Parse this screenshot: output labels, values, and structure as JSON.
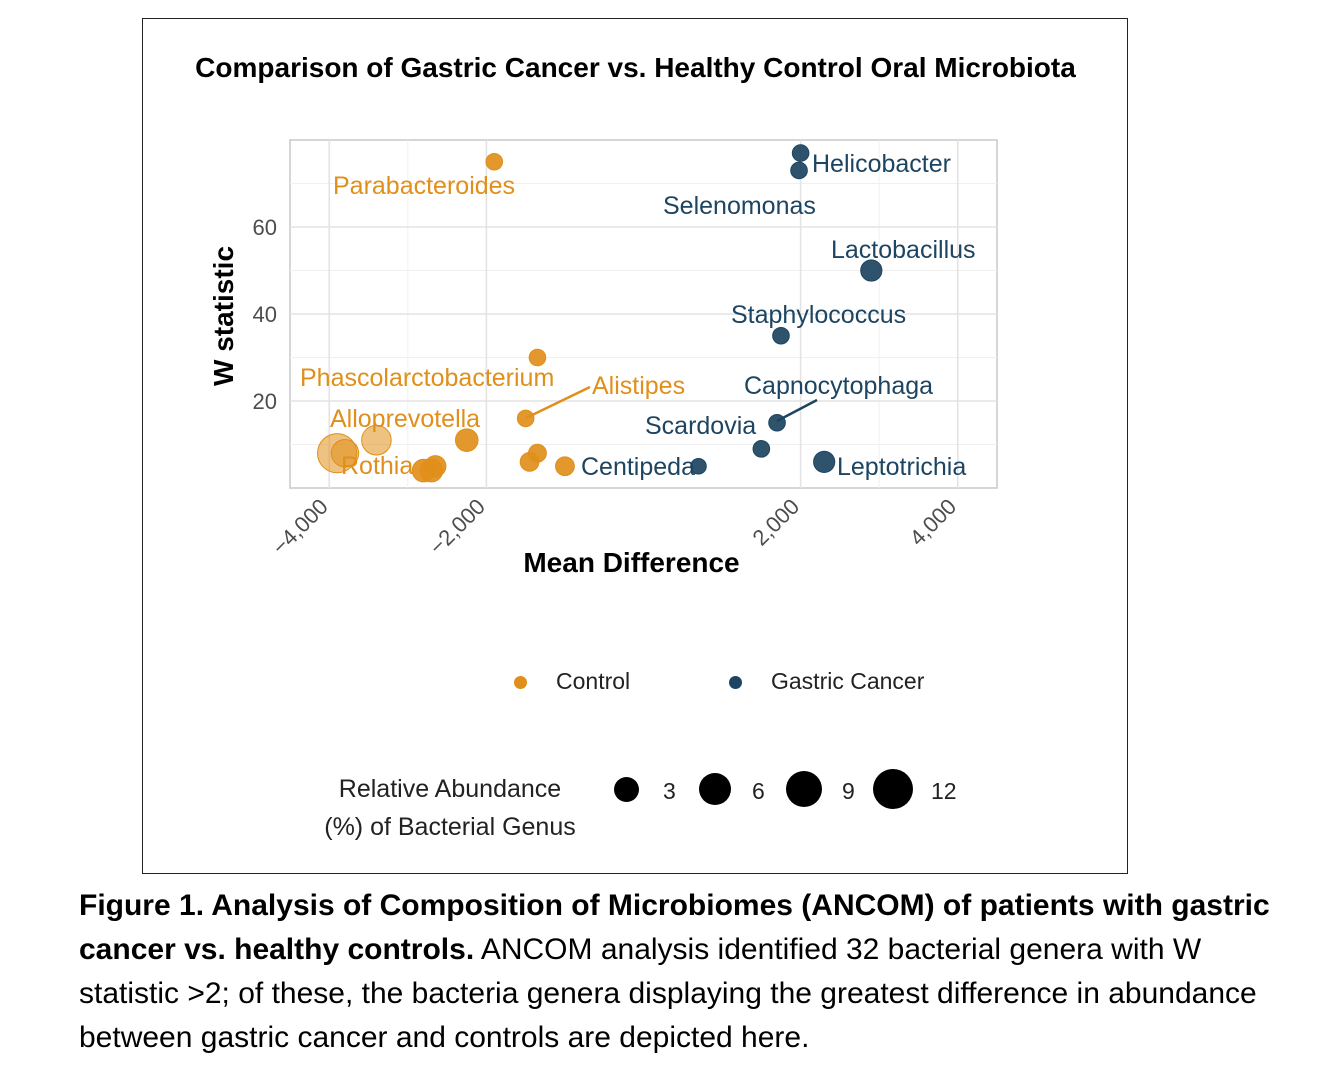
{
  "chart_data": {
    "type": "scatter",
    "title": "Comparison of Gastric Cancer vs. Healthy Control Oral Microbiota",
    "xlabel": "Mean Difference",
    "ylabel": "W statistic",
    "xlim": [
      -4500,
      4500
    ],
    "ylim": [
      0,
      80
    ],
    "x_ticks": [
      -4000,
      -2000,
      2000,
      4000
    ],
    "x_tick_labels": [
      "−4,000",
      "−2,000",
      "2,000",
      "4,000"
    ],
    "y_ticks": [
      20,
      40,
      60
    ],
    "y_tick_labels": [
      "20",
      "40",
      "60"
    ],
    "grid": true,
    "legend_position": "bottom",
    "series": [
      {
        "name": "Control",
        "color": "#e08f1a",
        "points": [
          {
            "x": -1900,
            "y": 75,
            "size": 1.2
          },
          {
            "x": -2250,
            "y": 11,
            "size": 3
          },
          {
            "x": -3900,
            "y": 8,
            "size": 12
          },
          {
            "x": -3800,
            "y": 8,
            "size": 5
          },
          {
            "x": -3400,
            "y": 11,
            "size": 6
          },
          {
            "x": -2800,
            "y": 4,
            "size": 3
          },
          {
            "x": -2650,
            "y": 5,
            "size": 2.5
          },
          {
            "x": -2700,
            "y": 4,
            "size": 3
          },
          {
            "x": -1350,
            "y": 30,
            "size": 1.2
          },
          {
            "x": -1500,
            "y": 16,
            "size": 1.2
          },
          {
            "x": -1350,
            "y": 8,
            "size": 1.5
          },
          {
            "x": -1450,
            "y": 6,
            "size": 1.8
          },
          {
            "x": -1000,
            "y": 5,
            "size": 1.8
          }
        ]
      },
      {
        "name": "Gastric Cancer",
        "color": "#1d4460",
        "points": [
          {
            "x": 2000,
            "y": 77,
            "size": 1.2
          },
          {
            "x": 1980,
            "y": 73,
            "size": 1.2
          },
          {
            "x": 2900,
            "y": 50,
            "size": 2.5
          },
          {
            "x": 1750,
            "y": 35,
            "size": 1.2
          },
          {
            "x": 1700,
            "y": 15,
            "size": 1.2
          },
          {
            "x": 1500,
            "y": 9,
            "size": 1.2
          },
          {
            "x": 2300,
            "y": 6,
            "size": 2.5
          },
          {
            "x": 700,
            "y": 5,
            "size": 1
          }
        ]
      }
    ],
    "annotations": [
      {
        "text": "Parabacteroides",
        "series": "Control"
      },
      {
        "text": "Phascolarctobacterium",
        "series": "Control"
      },
      {
        "text": "Alistipes",
        "series": "Control"
      },
      {
        "text": "Alloprevotella",
        "series": "Control"
      },
      {
        "text": "Rothia",
        "series": "Control"
      },
      {
        "text": "Centipeda",
        "series": "Gastric Cancer"
      },
      {
        "text": "Helicobacter",
        "series": "Gastric Cancer"
      },
      {
        "text": "Selenomonas",
        "series": "Gastric Cancer"
      },
      {
        "text": "Lactobacillus",
        "series": "Gastric Cancer"
      },
      {
        "text": "Staphylococcus",
        "series": "Gastric Cancer"
      },
      {
        "text": "Capnocytophaga",
        "series": "Gastric Cancer"
      },
      {
        "text": "Scardovia",
        "series": "Gastric Cancer"
      },
      {
        "text": "Leptotrichia",
        "series": "Gastric Cancer"
      }
    ],
    "legend": {
      "color_entries": [
        "Control",
        "Gastric Cancer"
      ],
      "size_title_line1": "Relative Abundance",
      "size_title_line2": "(%) of Bacterial Genus",
      "size_values": [
        "3",
        "6",
        "9",
        "12"
      ]
    }
  },
  "caption": {
    "bold": "Figure 1. Analysis of Composition of Microbiomes (ANCOM) of patients with gastric cancer vs. healthy controls.",
    "text": " ANCOM analysis identified 32 bacterial genera with W statistic >2; of these, the bacteria genera displaying the greatest difference in abundance between gastric cancer and controls are depicted here."
  }
}
